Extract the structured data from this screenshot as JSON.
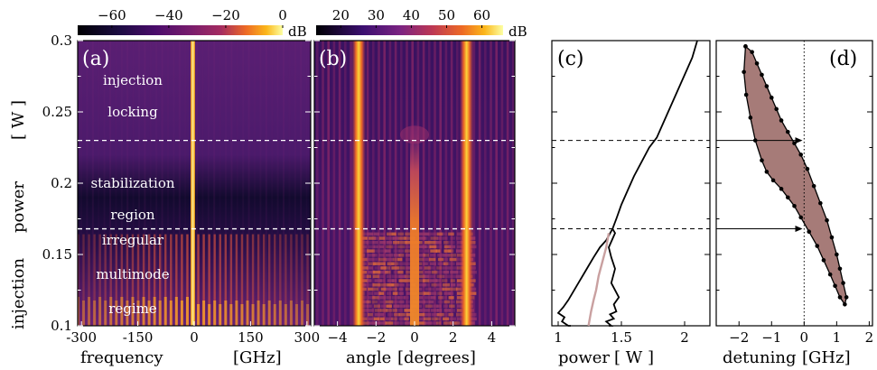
{
  "chart_data": [
    {
      "panel": "(a)",
      "type": "heatmap",
      "xlabel": "frequency",
      "xunit": "[GHz]",
      "ylabel": "injection",
      "ylabel2": "power",
      "yunit": "[ W ]",
      "xlim": [
        -310,
        310
      ],
      "ylim": [
        0.1,
        0.3
      ],
      "xticks": [
        "-300",
        "-150",
        "0",
        "150",
        "300"
      ],
      "yticks": [
        "0.1",
        "0.15",
        "0.2",
        "0.25",
        "0.3"
      ],
      "colorbar": {
        "unit": "dB",
        "range": [
          -72,
          0
        ],
        "ticks": [
          "−60",
          "−40",
          "−20",
          "0"
        ]
      },
      "boundaries": [
        0.23,
        0.168
      ],
      "regions": [
        {
          "lines": [
            "injection",
            "locking"
          ],
          "y": [
            0.272,
            0.25
          ]
        },
        {
          "lines": [
            "stabilization",
            "region"
          ],
          "y": [
            0.2,
            0.178
          ]
        },
        {
          "lines": [
            "irregular",
            "multimode",
            "regime"
          ],
          "y": [
            0.16,
            0.136,
            0.112
          ]
        }
      ]
    },
    {
      "panel": "(b)",
      "type": "heatmap",
      "xlabel": "angle",
      "xunit": "[degrees]",
      "xlim": [
        -5.2,
        5.2
      ],
      "ylim": [
        0.1,
        0.3
      ],
      "xticks": [
        "−4",
        "−2",
        "0",
        "2",
        "4"
      ],
      "colorbar": {
        "unit": "dB",
        "range": [
          13,
          66
        ],
        "ticks": [
          "20",
          "30",
          "40",
          "50",
          "60"
        ]
      },
      "lobes": [
        -2.9,
        2.7
      ]
    },
    {
      "panel": "(c)",
      "type": "line",
      "xlabel": "power",
      "xunit": "[ W ]",
      "xlim": [
        0.95,
        2.2
      ],
      "ylim": [
        0.1,
        0.3
      ],
      "xticks": [
        "1",
        "1.5",
        "2"
      ],
      "series": [
        {
          "x": [
            1.43,
            1.46,
            1.5,
            1.55,
            1.6,
            1.66,
            1.72,
            1.78,
            1.82,
            1.86,
            1.9,
            1.94,
            1.98,
            2.02,
            2.06,
            2.1
          ],
          "y": [
            0.168,
            0.175,
            0.185,
            0.195,
            0.205,
            0.215,
            0.225,
            0.232,
            0.24,
            0.248,
            0.256,
            0.264,
            0.272,
            0.28,
            0.288,
            0.3
          ],
          "color": "#000000"
        },
        {
          "x": [
            1.43,
            1.38,
            1.33,
            1.28,
            1.24,
            1.2,
            1.16,
            1.12,
            1.08,
            1.04,
            1.0,
            1.05,
            1.03,
            1.08,
            1.1
          ],
          "y": [
            0.168,
            0.16,
            0.155,
            0.148,
            0.142,
            0.136,
            0.13,
            0.124,
            0.118,
            0.113,
            0.109,
            0.106,
            0.103,
            0.1,
            0.1
          ],
          "color": "#000000"
        },
        {
          "x": [
            1.43,
            1.45,
            1.4,
            1.42,
            1.45,
            1.42,
            1.48,
            1.44,
            1.46,
            1.41,
            1.44,
            1.38,
            1.42,
            1.4
          ],
          "y": [
            0.168,
            0.165,
            0.155,
            0.148,
            0.14,
            0.13,
            0.12,
            0.115,
            0.11,
            0.108,
            0.105,
            0.103,
            0.1,
            0.1
          ],
          "color": "#000000"
        },
        {
          "x": [
            1.4,
            1.38,
            1.35,
            1.32,
            1.3,
            1.28,
            1.26,
            1.25,
            1.24
          ],
          "y": [
            0.165,
            0.155,
            0.145,
            0.135,
            0.125,
            0.118,
            0.11,
            0.105,
            0.1
          ],
          "color": "#c9a0a0"
        }
      ]
    },
    {
      "panel": "(d)",
      "type": "area",
      "xlabel": "detuning",
      "xunit": "[GHz]",
      "xlim": [
        -2.7,
        2.1
      ],
      "ylim": [
        0.1,
        0.3
      ],
      "xticks": [
        "−2",
        "−1",
        "0",
        "1",
        "2"
      ],
      "fill": "#a67b78",
      "boundary": [
        {
          "x": -1.8,
          "y": 0.296
        },
        {
          "x": -1.6,
          "y": 0.292
        },
        {
          "x": -1.45,
          "y": 0.284
        },
        {
          "x": -1.3,
          "y": 0.276
        },
        {
          "x": -1.15,
          "y": 0.268
        },
        {
          "x": -1.0,
          "y": 0.26
        },
        {
          "x": -0.85,
          "y": 0.252
        },
        {
          "x": -0.7,
          "y": 0.244
        },
        {
          "x": -0.5,
          "y": 0.236
        },
        {
          "x": -0.3,
          "y": 0.228
        },
        {
          "x": -0.1,
          "y": 0.22
        },
        {
          "x": 0.1,
          "y": 0.21
        },
        {
          "x": 0.3,
          "y": 0.198
        },
        {
          "x": 0.5,
          "y": 0.186
        },
        {
          "x": 0.7,
          "y": 0.174
        },
        {
          "x": 0.85,
          "y": 0.162
        },
        {
          "x": 1.0,
          "y": 0.15
        },
        {
          "x": 1.1,
          "y": 0.14
        },
        {
          "x": 1.2,
          "y": 0.13
        },
        {
          "x": 1.3,
          "y": 0.12
        },
        {
          "x": 1.25,
          "y": 0.115
        },
        {
          "x": 1.1,
          "y": 0.12
        },
        {
          "x": 0.95,
          "y": 0.128
        },
        {
          "x": 0.8,
          "y": 0.136
        },
        {
          "x": 0.6,
          "y": 0.146
        },
        {
          "x": 0.4,
          "y": 0.156
        },
        {
          "x": 0.15,
          "y": 0.166
        },
        {
          "x": -0.1,
          "y": 0.176
        },
        {
          "x": -0.3,
          "y": 0.184
        },
        {
          "x": -0.5,
          "y": 0.19
        },
        {
          "x": -0.7,
          "y": 0.196
        },
        {
          "x": -0.95,
          "y": 0.202
        },
        {
          "x": -1.15,
          "y": 0.208
        },
        {
          "x": -1.3,
          "y": 0.216
        },
        {
          "x": -1.5,
          "y": 0.23
        },
        {
          "x": -1.65,
          "y": 0.246
        },
        {
          "x": -1.78,
          "y": 0.262
        },
        {
          "x": -1.85,
          "y": 0.278
        },
        {
          "x": -1.8,
          "y": 0.296
        }
      ],
      "arrows": [
        {
          "y": 0.23,
          "x": -0.05
        },
        {
          "y": 0.168,
          "x": -0.05
        }
      ]
    }
  ]
}
